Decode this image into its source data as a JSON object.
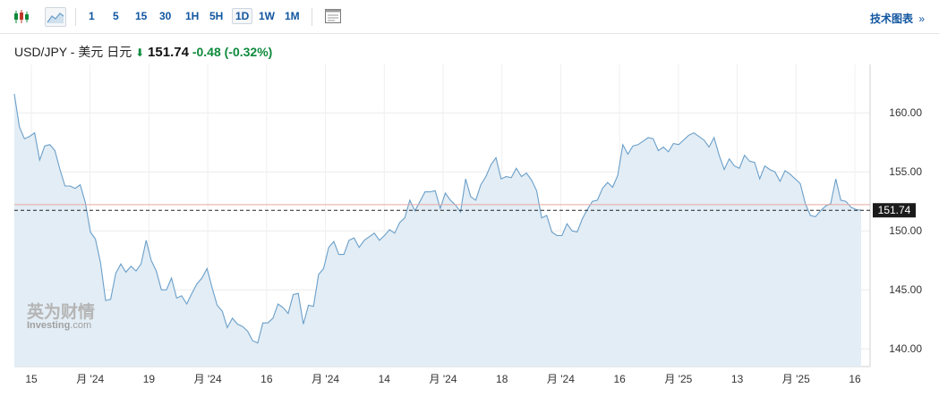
{
  "toolbar": {
    "icons": [
      "candlestick-icon",
      "area-chart-icon",
      "chart-settings-icon"
    ],
    "timeframes": [
      "1",
      "5",
      "15",
      "30",
      "1H",
      "5H",
      "1D",
      "1W",
      "1M"
    ],
    "active_timeframe": "1D",
    "tech_chart_label": "技术图表",
    "tech_chart_arrow": "»"
  },
  "header": {
    "symbol": "USD/JPY - 美元 日元",
    "direction_icon": "down-arrow-icon",
    "price": "151.74",
    "change": "-0.48",
    "change_pct": "(-0.32%)",
    "change_color": "#0e8a3c"
  },
  "watermark": {
    "brand_cn": "英为财情",
    "brand_en": "Investing",
    "brand_suffix": ".com"
  },
  "chart_data": {
    "type": "area",
    "ylim": [
      138.5,
      163.5
    ],
    "yticks": [
      140,
      145,
      150,
      155,
      160
    ],
    "ytick_labels": [
      "140.00",
      "145.00",
      "150.00",
      "155.00",
      "160.00"
    ],
    "x_labels": [
      "15",
      "月 '24",
      "19",
      "月 '24",
      "16",
      "月 '24",
      "14",
      "月 '24",
      "18",
      "月 '24",
      "16",
      "月 '25",
      "13",
      "月 '25",
      "16"
    ],
    "last_price_label": "151.74",
    "reference_price": 152.22,
    "line_color": "#6a9fc9",
    "fill_color": "#e3edf5",
    "grid": true,
    "series": [
      {
        "values": [
          161.6,
          158.8,
          157.8,
          158.0,
          158.3,
          156.0,
          157.2,
          157.3,
          156.8,
          155.2,
          153.8,
          153.8,
          153.6,
          153.9,
          152.4,
          149.9,
          149.3,
          147.3,
          144.1,
          144.2,
          146.4,
          147.2,
          146.5,
          147.0,
          146.6,
          147.2,
          149.2,
          147.5,
          146.6,
          145.0,
          145.0,
          146.0,
          144.3,
          144.5,
          143.8,
          144.7,
          145.5,
          146.0,
          146.8,
          145.2,
          143.7,
          143.2,
          141.8,
          142.6,
          142.1,
          141.9,
          141.5,
          140.7,
          140.5,
          142.2,
          142.2,
          142.6,
          143.8,
          143.5,
          143.0,
          144.6,
          144.7,
          142.1,
          143.7,
          143.6,
          146.3,
          146.8,
          148.6,
          149.1,
          148.0,
          148.0,
          149.2,
          149.4,
          148.6,
          149.2,
          149.5,
          149.8,
          149.2,
          149.6,
          150.1,
          149.8,
          150.7,
          151.1,
          152.6,
          151.7,
          152.5,
          153.3,
          153.3,
          153.4,
          151.9,
          153.2,
          152.6,
          152.2,
          151.6,
          154.4,
          152.9,
          152.6,
          153.9,
          154.6,
          155.6,
          156.2,
          154.4,
          154.6,
          154.5,
          155.3,
          154.6,
          154.9,
          154.3,
          153.4,
          151.1,
          151.3,
          149.9,
          149.6,
          149.6,
          150.6,
          150.0,
          149.9,
          151.0,
          151.8,
          152.5,
          152.6,
          153.6,
          154.1,
          153.7,
          154.7,
          157.3,
          156.5,
          157.2,
          157.3,
          157.6,
          157.9,
          157.8,
          156.8,
          157.1,
          156.7,
          157.4,
          157.3,
          157.7,
          158.1,
          158.3,
          158.0,
          157.7,
          157.1,
          157.9,
          156.4,
          155.2,
          156.1,
          155.5,
          155.3,
          156.4,
          155.9,
          155.8,
          154.4,
          155.5,
          155.2,
          155.0,
          154.2,
          155.1,
          154.8,
          154.4,
          154.0,
          152.3,
          151.3,
          151.2,
          151.7,
          152.1,
          152.3,
          154.4,
          152.6,
          152.5,
          152.0,
          151.8,
          151.74
        ]
      }
    ]
  }
}
